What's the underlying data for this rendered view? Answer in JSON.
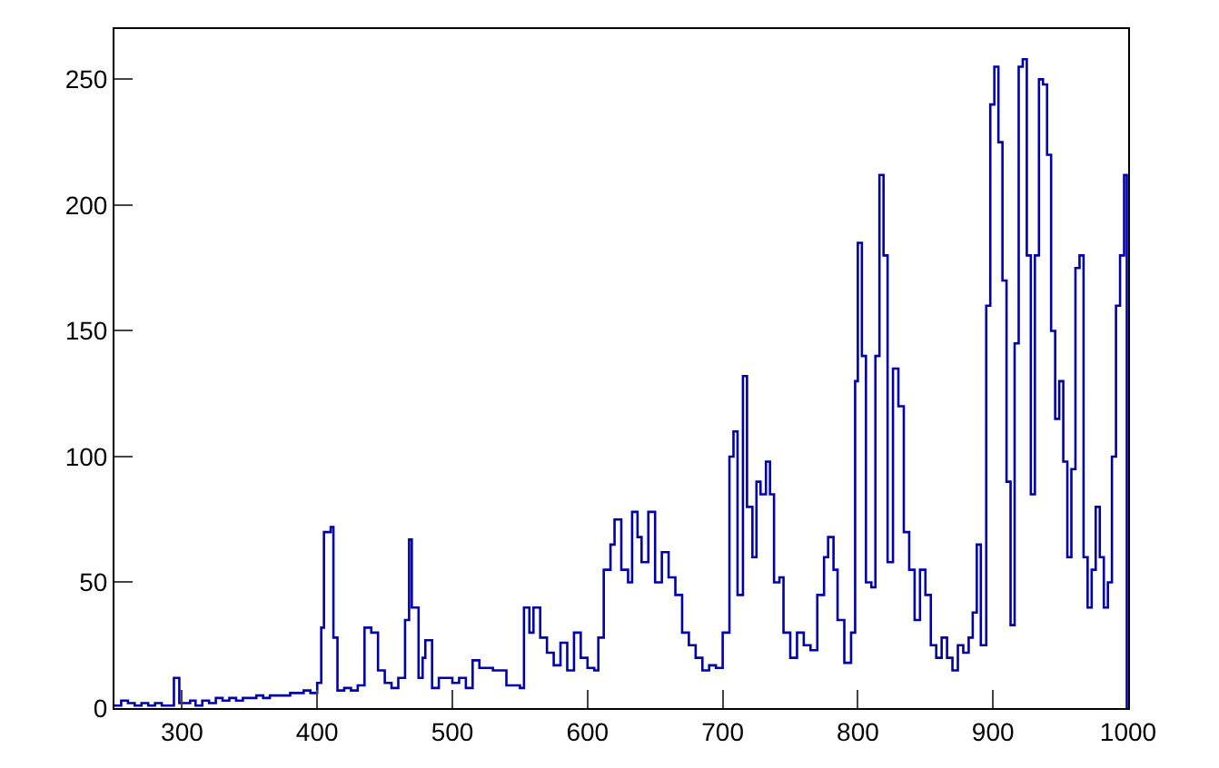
{
  "chart_data": {
    "type": "step",
    "xlim": [
      250,
      1000
    ],
    "ylim": [
      0,
      270
    ],
    "xticks": [
      300,
      400,
      500,
      600,
      700,
      800,
      900,
      1000
    ],
    "yticks": [
      0,
      50,
      100,
      150,
      200,
      250
    ],
    "series": [
      {
        "color": "#0000aa",
        "x": [
          250,
          255,
          260,
          265,
          270,
          275,
          280,
          285,
          290,
          294,
          298,
          302,
          306,
          310,
          315,
          320,
          325,
          330,
          335,
          340,
          345,
          350,
          355,
          360,
          365,
          370,
          375,
          380,
          385,
          390,
          395,
          400,
          403,
          405,
          410,
          412,
          415,
          420,
          425,
          430,
          435,
          440,
          445,
          450,
          455,
          460,
          465,
          468,
          470,
          475,
          478,
          480,
          485,
          490,
          500,
          505,
          510,
          515,
          520,
          530,
          540,
          550,
          553,
          557,
          560,
          565,
          570,
          575,
          580,
          585,
          590,
          595,
          600,
          605,
          608,
          612,
          617,
          620,
          625,
          630,
          633,
          637,
          640,
          645,
          650,
          655,
          660,
          665,
          670,
          675,
          680,
          685,
          690,
          695,
          700,
          705,
          708,
          711,
          715,
          718,
          722,
          725,
          728,
          732,
          735,
          738,
          742,
          745,
          750,
          755,
          760,
          765,
          770,
          775,
          778,
          782,
          785,
          790,
          795,
          798,
          800,
          803,
          806,
          810,
          813,
          816,
          819,
          822,
          826,
          830,
          834,
          838,
          842,
          846,
          850,
          854,
          858,
          862,
          866,
          870,
          874,
          878,
          882,
          885,
          888,
          891,
          895,
          898,
          901,
          904,
          907,
          910,
          913,
          916,
          919,
          922,
          925,
          928,
          931,
          934,
          937,
          940,
          943,
          946,
          949,
          952,
          955,
          958,
          961,
          964,
          967,
          970,
          973,
          976,
          979,
          982,
          985,
          988,
          991,
          994,
          997,
          999
        ],
        "values": [
          1,
          3,
          2,
          1,
          2,
          1,
          2,
          1,
          1,
          12,
          2,
          2,
          3,
          1,
          3,
          2,
          4,
          3,
          4,
          3,
          4,
          4,
          5,
          4,
          5,
          5,
          5,
          6,
          6,
          7,
          6,
          10,
          32,
          70,
          72,
          28,
          7,
          8,
          7,
          9,
          32,
          30,
          15,
          10,
          8,
          12,
          35,
          67,
          40,
          12,
          20,
          27,
          8,
          12,
          10,
          12,
          8,
          19,
          16,
          15,
          9,
          8,
          40,
          30,
          40,
          28,
          22,
          17,
          26,
          15,
          30,
          20,
          16,
          15,
          28,
          55,
          65,
          75,
          55,
          50,
          78,
          68,
          58,
          78,
          50,
          62,
          52,
          45,
          30,
          25,
          20,
          15,
          17,
          16,
          30,
          100,
          110,
          45,
          132,
          80,
          60,
          90,
          85,
          98,
          85,
          50,
          52,
          30,
          20,
          30,
          25,
          23,
          45,
          60,
          68,
          55,
          35,
          18,
          30,
          130,
          185,
          140,
          50,
          48,
          140,
          212,
          180,
          58,
          135,
          120,
          70,
          55,
          35,
          55,
          45,
          25,
          20,
          28,
          20,
          15,
          25,
          22,
          28,
          38,
          65,
          25,
          160,
          240,
          255,
          225,
          170,
          90,
          33,
          145,
          255,
          258,
          180,
          85,
          180,
          250,
          248,
          220,
          150,
          115,
          130,
          98,
          60,
          95,
          175,
          180,
          60,
          40,
          55,
          80,
          60,
          40,
          50,
          100,
          160,
          180,
          212,
          0
        ]
      }
    ]
  }
}
